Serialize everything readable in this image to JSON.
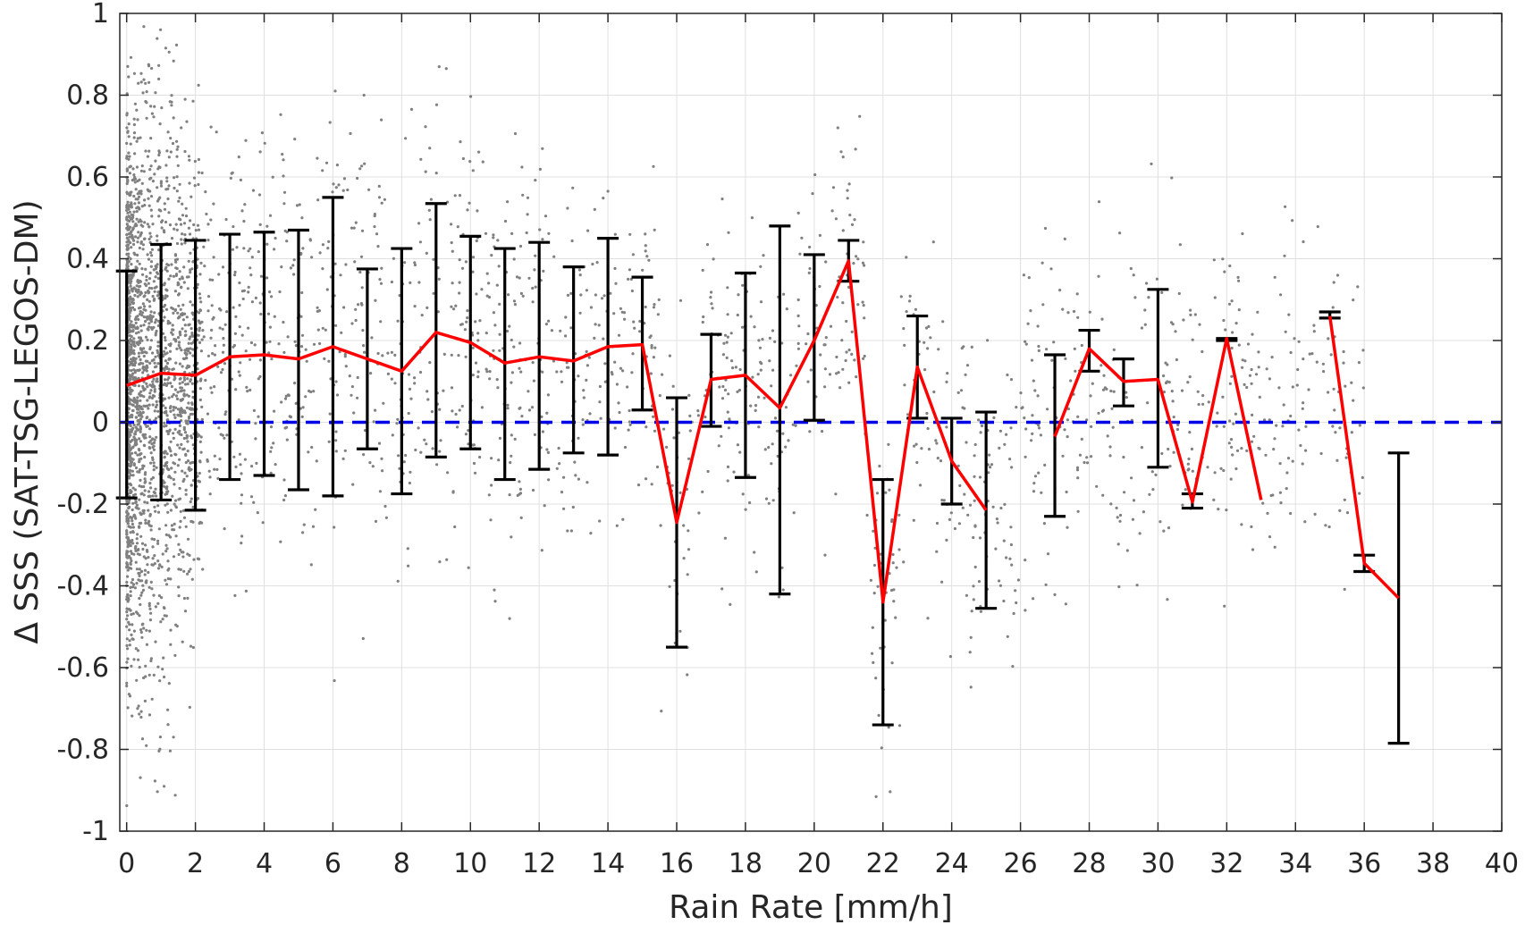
{
  "chart_data": {
    "type": "line",
    "title": "",
    "xlabel": "Rain Rate [mm/h]",
    "ylabel": "Δ SSS (SAT-TSG-LEGOS-DM)",
    "xlim": [
      -0.2,
      40
    ],
    "ylim": [
      -1,
      1
    ],
    "xticks": [
      0,
      2,
      4,
      6,
      8,
      10,
      12,
      14,
      16,
      18,
      20,
      22,
      24,
      26,
      28,
      30,
      32,
      34,
      36,
      38,
      40
    ],
    "yticks": [
      -1,
      -0.8,
      -0.6,
      -0.4,
      -0.2,
      0,
      0.2,
      0.4,
      0.6,
      0.8,
      1
    ],
    "ytick_labels": [
      "-1",
      "-0.8",
      "-0.6",
      "-0.4",
      "-0.2",
      "0",
      "0.2",
      "0.4",
      "0.6",
      "0.8",
      "1"
    ],
    "grid": true,
    "legend": "none",
    "colors": {
      "mean_line": "#ff0000",
      "error_bars": "#000000",
      "zero_line": "#0000e6",
      "scatter": "#808080",
      "grid": "#e0e0e0",
      "axes": "#262626"
    },
    "series": [
      {
        "type": "line",
        "style": "solid",
        "segments": [
          {
            "x": [
              0,
              1,
              2,
              3,
              4,
              5,
              6,
              7,
              8,
              9,
              10,
              11,
              12,
              13,
              14,
              15,
              16,
              17,
              18,
              19,
              20,
              21,
              22,
              23,
              24,
              25
            ],
            "y": [
              0.09,
              0.12,
              0.115,
              0.16,
              0.165,
              0.155,
              0.185,
              0.155,
              0.125,
              0.22,
              0.195,
              0.145,
              0.16,
              0.15,
              0.185,
              0.19,
              -0.245,
              0.105,
              0.115,
              0.035,
              0.2,
              0.395,
              -0.44,
              0.135,
              -0.095,
              -0.215
            ]
          },
          {
            "x": [
              27,
              28,
              29,
              30,
              31,
              32,
              33
            ],
            "y": [
              -0.035,
              0.18,
              0.1,
              0.105,
              -0.195,
              0.205,
              -0.19
            ]
          },
          {
            "x": [
              35,
              36,
              37
            ],
            "y": [
              0.26,
              -0.345,
              -0.43
            ]
          }
        ]
      },
      {
        "type": "errorbar",
        "x": [
          0,
          1,
          2,
          3,
          4,
          5,
          6,
          7,
          8,
          9,
          10,
          11,
          12,
          13,
          14,
          15,
          16,
          17,
          18,
          19,
          20,
          21,
          22,
          23,
          24,
          25,
          27,
          28,
          29,
          30,
          31,
          32,
          35,
          36,
          37
        ],
        "lower": [
          -0.185,
          -0.19,
          -0.215,
          -0.14,
          -0.13,
          -0.165,
          -0.18,
          -0.065,
          -0.175,
          -0.085,
          -0.065,
          -0.14,
          -0.115,
          -0.075,
          -0.08,
          0.03,
          -0.55,
          -0.01,
          -0.135,
          -0.42,
          0.005,
          0.345,
          -0.74,
          0.01,
          -0.2,
          -0.455,
          -0.23,
          0.125,
          0.04,
          -0.11,
          -0.21,
          0.2,
          0.255,
          -0.365,
          -0.785
        ],
        "upper": [
          0.37,
          0.435,
          0.445,
          0.46,
          0.465,
          0.47,
          0.55,
          0.375,
          0.425,
          0.535,
          0.455,
          0.425,
          0.44,
          0.38,
          0.45,
          0.355,
          0.06,
          0.215,
          0.365,
          0.48,
          0.41,
          0.445,
          -0.14,
          0.26,
          0.01,
          0.025,
          0.165,
          0.225,
          0.155,
          0.325,
          -0.175,
          0.205,
          0.27,
          -0.325,
          -0.075
        ]
      },
      {
        "type": "hline",
        "style": "dashed",
        "y": 0
      },
      {
        "type": "scatter",
        "description": "dense grey points, spread narrows with increasing rain rate",
        "x_range": [
          0,
          37
        ],
        "y_range": [
          -1,
          1
        ]
      }
    ]
  }
}
